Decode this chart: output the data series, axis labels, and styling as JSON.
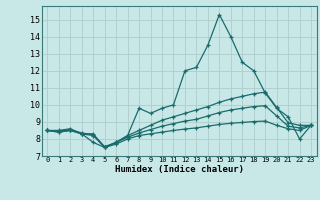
{
  "xlabel": "Humidex (Indice chaleur)",
  "background_color": "#c8e8e8",
  "grid_color": "#b0cccc",
  "line_color": "#1a6b6b",
  "xlim": [
    -0.5,
    23.5
  ],
  "ylim": [
    7,
    15.8
  ],
  "yticks": [
    7,
    8,
    9,
    10,
    11,
    12,
    13,
    14,
    15
  ],
  "xticks": [
    0,
    1,
    2,
    3,
    4,
    5,
    6,
    7,
    8,
    9,
    10,
    11,
    12,
    13,
    14,
    15,
    16,
    17,
    18,
    19,
    20,
    21,
    22,
    23
  ],
  "series": {
    "line1": [
      8.5,
      8.4,
      8.5,
      8.3,
      7.8,
      7.5,
      7.8,
      8.2,
      9.8,
      9.5,
      9.8,
      10.0,
      12.0,
      12.2,
      13.5,
      15.3,
      14.0,
      12.5,
      12.0,
      10.7,
      9.8,
      9.3,
      8.0,
      8.8
    ],
    "line2": [
      8.5,
      8.5,
      8.6,
      8.3,
      8.3,
      7.5,
      7.8,
      8.2,
      8.5,
      8.8,
      9.1,
      9.3,
      9.5,
      9.7,
      9.9,
      10.15,
      10.35,
      10.5,
      10.65,
      10.75,
      9.85,
      8.95,
      8.8,
      8.8
    ],
    "line3": [
      8.5,
      8.45,
      8.55,
      8.35,
      8.25,
      7.55,
      7.8,
      8.1,
      8.35,
      8.55,
      8.75,
      8.9,
      9.05,
      9.15,
      9.35,
      9.55,
      9.7,
      9.8,
      9.9,
      9.95,
      9.35,
      8.75,
      8.65,
      8.8
    ],
    "line4": [
      8.5,
      8.4,
      8.5,
      8.3,
      8.2,
      7.5,
      7.7,
      8.0,
      8.2,
      8.3,
      8.4,
      8.5,
      8.58,
      8.65,
      8.75,
      8.85,
      8.92,
      8.97,
      9.02,
      9.05,
      8.8,
      8.6,
      8.5,
      8.8
    ]
  }
}
